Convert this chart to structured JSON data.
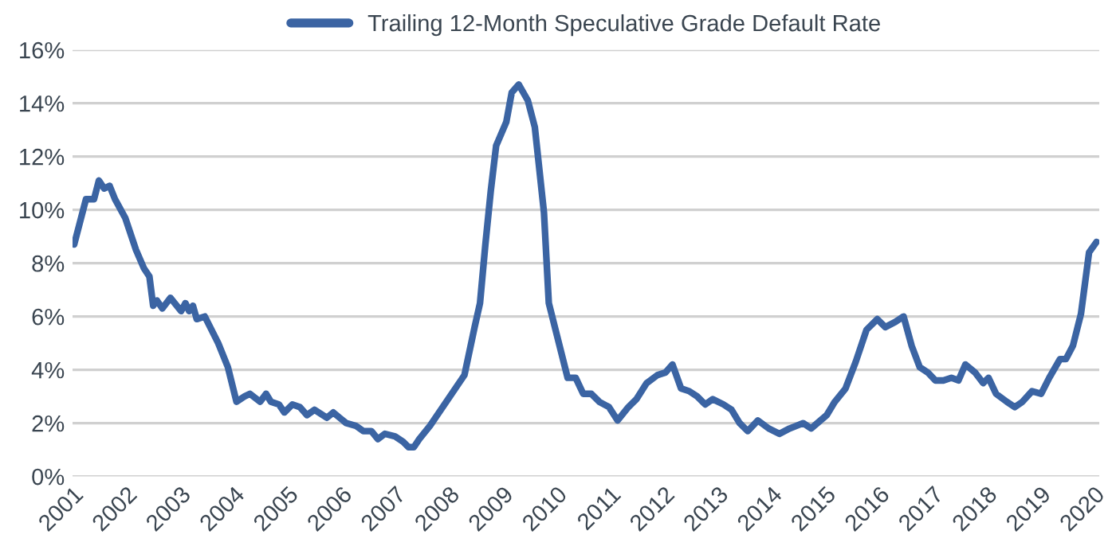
{
  "chart_data": {
    "type": "line",
    "legend": "top",
    "grid": "y",
    "line_style": "solid",
    "xlim": [
      2001,
      2020.1
    ],
    "xticks": [
      2001,
      2002,
      2003,
      2004,
      2005,
      2006,
      2007,
      2008,
      2009,
      2010,
      2011,
      2012,
      2013,
      2014,
      2015,
      2016,
      2017,
      2018,
      2019,
      2020
    ],
    "ylim": [
      0,
      16
    ],
    "yticks": [
      {
        "value": 0,
        "label": "0%"
      },
      {
        "value": 2,
        "label": "2%"
      },
      {
        "value": 4,
        "label": "4%"
      },
      {
        "value": 6,
        "label": "6%"
      },
      {
        "value": 8,
        "label": "8%"
      },
      {
        "value": 10,
        "label": "10%"
      },
      {
        "value": 12,
        "label": "12%"
      },
      {
        "value": 14,
        "label": "14%"
      },
      {
        "value": 16,
        "label": "16%"
      }
    ],
    "series": [
      {
        "name": "Trailing 12-Month Speculative Grade Default Rate",
        "color": "#3b64a3",
        "x": [
          2001.03,
          2001.25,
          2001.4,
          2001.49,
          2001.59,
          2001.69,
          2001.79,
          2001.98,
          2002.18,
          2002.33,
          2002.43,
          2002.5,
          2002.57,
          2002.67,
          2002.82,
          2003.02,
          2003.1,
          2003.17,
          2003.24,
          2003.31,
          2003.46,
          2003.71,
          2003.89,
          2004.05,
          2004.2,
          2004.3,
          2004.49,
          2004.6,
          2004.69,
          2004.84,
          2004.94,
          2005.09,
          2005.23,
          2005.36,
          2005.5,
          2005.73,
          2005.85,
          2005.97,
          2006.09,
          2006.27,
          2006.41,
          2006.56,
          2006.68,
          2006.81,
          2007.0,
          2007.15,
          2007.25,
          2007.35,
          2007.45,
          2007.65,
          2008.29,
          2008.48,
          2008.58,
          2008.68,
          2008.78,
          2008.88,
          2009.07,
          2009.17,
          2009.3,
          2009.47,
          2009.6,
          2009.77,
          2009.86,
          2010.01,
          2010.21,
          2010.36,
          2010.5,
          2010.65,
          2010.8,
          2010.98,
          2011.14,
          2011.34,
          2011.49,
          2011.68,
          2011.88,
          2012.03,
          2012.16,
          2012.32,
          2012.47,
          2012.62,
          2012.77,
          2012.91,
          2013.11,
          2013.26,
          2013.41,
          2013.56,
          2013.75,
          2013.95,
          2014.15,
          2014.34,
          2014.59,
          2014.74,
          2015.03,
          2015.18,
          2015.38,
          2015.57,
          2015.77,
          2015.97,
          2016.12,
          2016.31,
          2016.46,
          2016.61,
          2016.76,
          2016.91,
          2017.05,
          2017.2,
          2017.35,
          2017.48,
          2017.61,
          2017.79,
          2017.94,
          2018.04,
          2018.18,
          2018.38,
          2018.53,
          2018.67,
          2018.85,
          2019.02,
          2019.17,
          2019.37,
          2019.48,
          2019.61,
          2019.76,
          2019.91,
          2020.05
        ],
        "values": [
          8.7,
          10.4,
          10.4,
          11.1,
          10.8,
          10.9,
          10.4,
          9.7,
          8.5,
          7.8,
          7.5,
          6.4,
          6.6,
          6.3,
          6.7,
          6.2,
          6.5,
          6.2,
          6.4,
          5.9,
          6.0,
          5.0,
          4.1,
          2.8,
          3.0,
          3.1,
          2.8,
          3.1,
          2.8,
          2.7,
          2.4,
          2.7,
          2.6,
          2.3,
          2.5,
          2.2,
          2.4,
          2.2,
          2.0,
          1.9,
          1.7,
          1.7,
          1.4,
          1.6,
          1.5,
          1.3,
          1.1,
          1.1,
          1.4,
          1.9,
          3.8,
          5.6,
          6.5,
          8.7,
          10.7,
          12.4,
          13.3,
          14.4,
          14.7,
          14.1,
          13.1,
          9.9,
          6.5,
          5.3,
          3.7,
          3.7,
          3.1,
          3.1,
          2.8,
          2.6,
          2.1,
          2.6,
          2.9,
          3.5,
          3.8,
          3.9,
          4.2,
          3.3,
          3.2,
          3.0,
          2.7,
          2.9,
          2.7,
          2.5,
          2.0,
          1.7,
          2.1,
          1.8,
          1.6,
          1.8,
          2.0,
          1.8,
          2.3,
          2.8,
          3.3,
          4.3,
          5.5,
          5.9,
          5.6,
          5.8,
          6.0,
          4.9,
          4.1,
          3.9,
          3.6,
          3.6,
          3.7,
          3.6,
          4.2,
          3.9,
          3.5,
          3.7,
          3.1,
          2.8,
          2.6,
          2.8,
          3.2,
          3.1,
          3.7,
          4.4,
          4.4,
          4.9,
          6.1,
          8.4,
          8.8
        ]
      }
    ]
  }
}
